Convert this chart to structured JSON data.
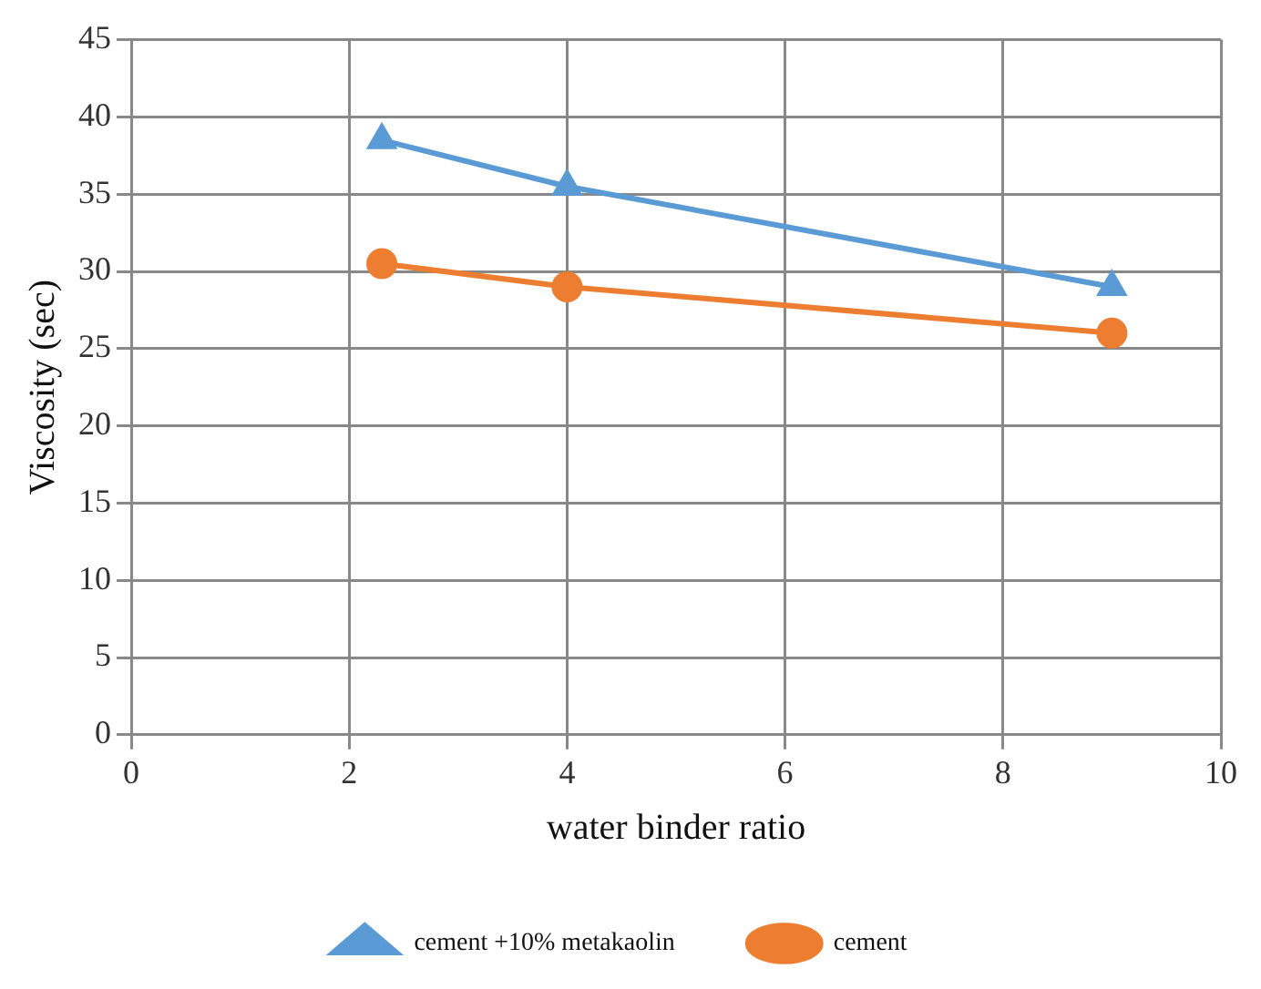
{
  "chart_data": {
    "type": "line",
    "xlabel": "water binder ratio",
    "ylabel": "Viscosity (sec)",
    "xlim": [
      0,
      10
    ],
    "xticks": [
      0,
      2,
      4,
      6,
      8,
      10
    ],
    "ylim": [
      0,
      45
    ],
    "yticks": [
      0,
      5,
      10,
      15,
      20,
      25,
      30,
      35,
      40,
      45
    ],
    "grid": true,
    "legend": "bottom",
    "line_style": "solid",
    "series": [
      {
        "name": "cement +10% metakaolin",
        "color": "#5b9bd5",
        "marker": "triangle",
        "x": [
          2.3,
          4,
          9
        ],
        "values": [
          38.5,
          35.5,
          29
        ]
      },
      {
        "name": "cement",
        "color": "#ed7d31",
        "marker": "circle",
        "x": [
          2.3,
          4,
          9
        ],
        "values": [
          30.5,
          29,
          26
        ]
      }
    ]
  }
}
